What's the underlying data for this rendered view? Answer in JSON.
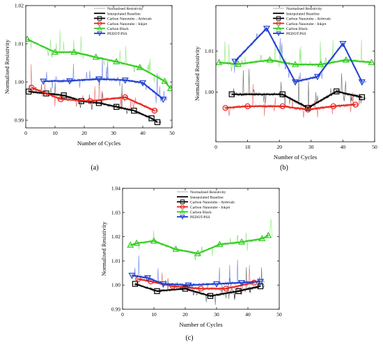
{
  "chart_data": [
    {
      "type": "line",
      "panel_label": "(a)",
      "xlabel": "Number of Cycles",
      "ylabel": "Normalised Resistivity",
      "xlim": [
        0,
        50
      ],
      "ylim": [
        0.988,
        1.02
      ],
      "xticks": [
        0,
        10,
        20,
        30,
        40,
        50
      ],
      "xtick_labels": [
        "0",
        "10",
        "20",
        "30",
        "40",
        "50"
      ],
      "yticks": [
        0.99,
        1.0,
        1.01,
        1.02
      ],
      "ytick_labels": [
        "0.99",
        "1.00",
        "1.01",
        "1.02"
      ],
      "grid": false,
      "legend_position": "top-right",
      "legend": [
        "Normalised Resistivity",
        "Interpolated Baseline",
        "Carbon Nanotube - Airbrush",
        "Carbon Nanotube - Inkjet",
        "Carbon Black",
        "PEDOT:PSS"
      ],
      "series": [
        {
          "name": "Carbon Nanotube - Airbrush",
          "color": "#000000",
          "marker": "square",
          "x": [
            1,
            7,
            13,
            19,
            25,
            31,
            37,
            43,
            45
          ],
          "y": [
            0.9975,
            0.997,
            0.9965,
            0.995,
            0.9945,
            0.9935,
            0.9925,
            0.9905,
            0.9895
          ]
        },
        {
          "name": "Carbon Nanotube - Inkjet",
          "color": "#e8231d",
          "marker": "circle",
          "x": [
            2,
            12,
            22,
            34,
            44
          ],
          "y": [
            0.9985,
            0.9955,
            0.995,
            0.996,
            0.9925
          ]
        },
        {
          "name": "Carbon Black",
          "color": "#33cc22",
          "marker": "triangle-up",
          "x": [
            0.5,
            10,
            16.5,
            24,
            31,
            39,
            47.5,
            49.5
          ],
          "y": [
            1.0112,
            1.0078,
            1.0078,
            1.0065,
            1.0053,
            1.0038,
            1.0002,
            0.9983
          ]
        },
        {
          "name": "PEDOT:PSS",
          "color": "#1f3fcf",
          "marker": "triangle-down",
          "x": [
            6,
            15,
            25,
            34,
            40,
            47
          ],
          "y": [
            1.0002,
            1.0003,
            1.0008,
            1.0005,
            0.9998,
            0.9955
          ]
        }
      ]
    },
    {
      "type": "line",
      "panel_label": "(b)",
      "xlabel": "Number of Cycles",
      "ylabel": "Normalised Resistivity",
      "xlim": [
        0,
        50
      ],
      "ylim": [
        0.988,
        1.021
      ],
      "xticks": [
        0,
        10,
        20,
        30,
        40,
        50
      ],
      "xtick_labels": [
        "0",
        "10",
        "20",
        "30",
        "40",
        "50"
      ],
      "yticks": [
        1.0,
        1.01
      ],
      "ytick_labels": [
        "1.00",
        "1.01"
      ],
      "grid": false,
      "legend_position": "top-right",
      "legend": [
        "Normalised Resistivity",
        "Interpolated Baseline",
        "Carbon Nanotube - Airbrush",
        "Carbon Nanotube - Inkjet",
        "Carbon Black",
        "PEDOT:PSS"
      ],
      "series": [
        {
          "name": "Carbon Nanotube - Airbrush",
          "color": "#000000",
          "marker": "square",
          "x": [
            5,
            21,
            29,
            38,
            46
          ],
          "y": [
            0.9995,
            0.9995,
            0.9962,
            1.0002,
            0.9988
          ]
        },
        {
          "name": "Carbon Nanotube - Inkjet",
          "color": "#e8231d",
          "marker": "circle",
          "x": [
            3,
            10,
            21,
            29,
            37,
            44
          ],
          "y": [
            0.9962,
            0.9966,
            0.9966,
            0.9958,
            0.9966,
            0.997
          ]
        },
        {
          "name": "Carbon Black",
          "color": "#33cc22",
          "marker": "triangle-up",
          "x": [
            1,
            7,
            17,
            25,
            33,
            41,
            49
          ],
          "y": [
            1.0072,
            1.0068,
            1.0078,
            1.0067,
            1.0067,
            1.0078,
            1.0072
          ]
        },
        {
          "name": "PEDOT:PSS",
          "color": "#1f3fcf",
          "marker": "triangle-down",
          "x": [
            6,
            16,
            25,
            32,
            40,
            46
          ],
          "y": [
            1.0075,
            1.0155,
            1.0025,
            1.0038,
            1.0118,
            1.0025
          ]
        }
      ]
    },
    {
      "type": "line",
      "panel_label": "(c)",
      "xlabel": "Number of Cycles",
      "ylabel": "Normalised Resistivity",
      "xlim": [
        0,
        50
      ],
      "ylim": [
        0.99,
        1.04
      ],
      "xticks": [
        0,
        10,
        20,
        30,
        40,
        50
      ],
      "xtick_labels": [
        "0",
        "10",
        "20",
        "30",
        "40",
        "50"
      ],
      "yticks": [
        0.99,
        1.0,
        1.01,
        1.02,
        1.03,
        1.04
      ],
      "ytick_labels": [
        "0.99",
        "1.00",
        "1.01",
        "1.02",
        "1.03",
        "1.04"
      ],
      "grid": false,
      "legend_position": "top-right",
      "legend": [
        "Normalised Resistivity",
        "Interpolated Baseline",
        "Carbon Nanotube - Airbrush",
        "Carbon Nanotube - Inkjet",
        "Carbon Black",
        "PEDOT:PSS"
      ],
      "series": [
        {
          "name": "Carbon Nanotube - Airbrush",
          "color": "#000000",
          "marker": "square",
          "x": [
            4,
            11,
            20,
            28,
            37,
            44
          ],
          "y": [
            1.0005,
            0.9975,
            0.9985,
            0.9955,
            0.9975,
            0.9995
          ]
        },
        {
          "name": "Carbon Nanotube - Inkjet",
          "color": "#e8231d",
          "marker": "circle",
          "x": [
            5,
            9,
            16,
            25,
            33,
            42
          ],
          "y": [
            1.0025,
            1.0015,
            0.9995,
            0.9985,
            0.9985,
            1.001
          ]
        },
        {
          "name": "Carbon Black",
          "color": "#33cc22",
          "marker": "triangle-up",
          "x": [
            2.5,
            4.5,
            10,
            17,
            24,
            31,
            38,
            44.5,
            46.5
          ],
          "y": [
            1.0165,
            1.0173,
            1.0182,
            1.0148,
            1.013,
            1.0168,
            1.0178,
            1.0192,
            1.0205
          ]
        },
        {
          "name": "PEDOT:PSS",
          "color": "#1f3fcf",
          "marker": "triangle-down",
          "x": [
            3,
            8,
            13,
            21,
            30,
            38,
            44
          ],
          "y": [
            1.004,
            1.003,
            1.0005,
            1.0,
            1.0005,
            1.001,
            1.0015
          ]
        }
      ]
    }
  ]
}
